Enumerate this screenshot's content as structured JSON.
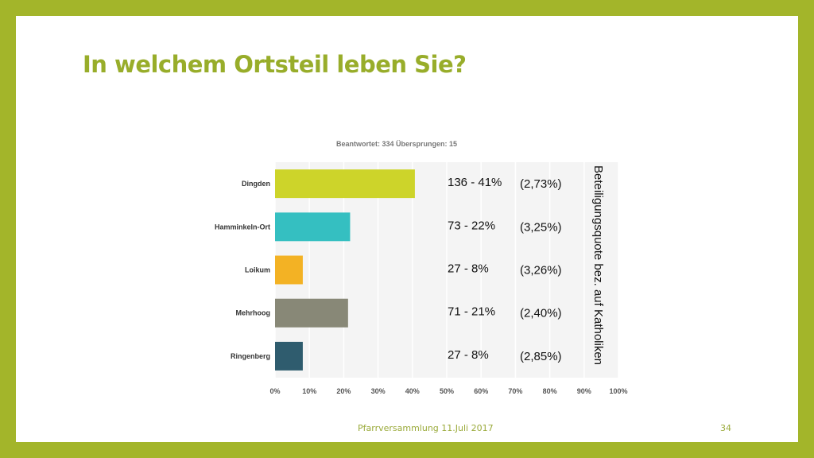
{
  "slide": {
    "title": "In welchem Ortsteil leben Sie?",
    "footer": "Pfarrversammlung 11.Juli 2017",
    "page_number": "34"
  },
  "colors": {
    "frame": "#a3b52a",
    "title": "#98ad2a",
    "footer": "#9aaa3a"
  },
  "chart_data": {
    "type": "bar",
    "orientation": "horizontal",
    "subtitle": "Beantwortet: 334   Übersprungen: 15",
    "categories": [
      "Dingden",
      "Hamminkeln-Ort",
      "Loikum",
      "Mehrhoog",
      "Ringenberg"
    ],
    "values": [
      40.72,
      21.86,
      8.08,
      21.26,
      8.08
    ],
    "colors": [
      "#cdd42a",
      "#35bfc1",
      "#f3b224",
      "#888877",
      "#2f5c6e"
    ],
    "annotations": [
      "136 - 41%",
      "73 - 22%",
      "27 - 8%",
      "71 - 21%",
      "27 - 8%"
    ],
    "annotations2": [
      "(2,73%)",
      "(3,25%)",
      "(3,26%)",
      "(2,40%)",
      "(2,85%)"
    ],
    "side_label": "Beteiligungsquote bez. auf Katholiken",
    "xlim": [
      0,
      100
    ],
    "xticks": [
      "0%",
      "10%",
      "20%",
      "30%",
      "40%",
      "50%",
      "60%",
      "70%",
      "80%",
      "90%",
      "100%"
    ],
    "grid": true
  }
}
